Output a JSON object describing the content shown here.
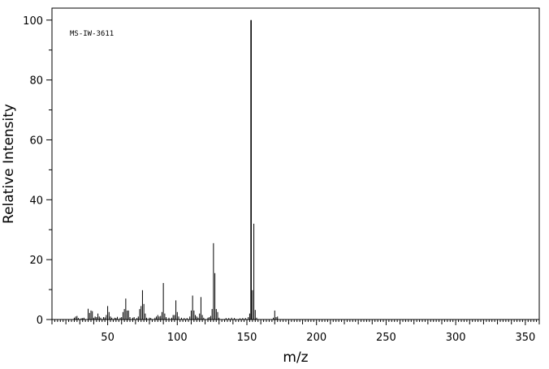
{
  "chart_data": {
    "type": "bar",
    "annotation": "MS-IW-3611",
    "xlabel": "m/z",
    "ylabel": "Relative Intensity",
    "xlim": [
      10,
      360
    ],
    "ylim": [
      0,
      104
    ],
    "x_ticks_major": [
      50,
      100,
      150,
      200,
      250,
      300,
      350
    ],
    "y_ticks_major": [
      0,
      20,
      40,
      60,
      80,
      100
    ],
    "grid": false,
    "legend": "none",
    "color": "#000000",
    "peaks": [
      {
        "mz": 26,
        "i": 0.6
      },
      {
        "mz": 27,
        "i": 1.0
      },
      {
        "mz": 28,
        "i": 1.2
      },
      {
        "mz": 29,
        "i": 0.5
      },
      {
        "mz": 31,
        "i": 0.4
      },
      {
        "mz": 32,
        "i": 0.5
      },
      {
        "mz": 33,
        "i": 0.6
      },
      {
        "mz": 36,
        "i": 3.6
      },
      {
        "mz": 37,
        "i": 2.2
      },
      {
        "mz": 38,
        "i": 3.0
      },
      {
        "mz": 39,
        "i": 2.8
      },
      {
        "mz": 40,
        "i": 0.6
      },
      {
        "mz": 41,
        "i": 1.0
      },
      {
        "mz": 42,
        "i": 0.8
      },
      {
        "mz": 43,
        "i": 2.0
      },
      {
        "mz": 44,
        "i": 1.0
      },
      {
        "mz": 45,
        "i": 0.6
      },
      {
        "mz": 47,
        "i": 0.8
      },
      {
        "mz": 48,
        "i": 0.7
      },
      {
        "mz": 49,
        "i": 1.5
      },
      {
        "mz": 50,
        "i": 4.5
      },
      {
        "mz": 51,
        "i": 2.5
      },
      {
        "mz": 52,
        "i": 1.0
      },
      {
        "mz": 53,
        "i": 0.6
      },
      {
        "mz": 55,
        "i": 0.6
      },
      {
        "mz": 56,
        "i": 0.5
      },
      {
        "mz": 57,
        "i": 0.9
      },
      {
        "mz": 59,
        "i": 0.6
      },
      {
        "mz": 60,
        "i": 0.8
      },
      {
        "mz": 61,
        "i": 2.5
      },
      {
        "mz": 62,
        "i": 3.5
      },
      {
        "mz": 63,
        "i": 7.0
      },
      {
        "mz": 64,
        "i": 3.0
      },
      {
        "mz": 65,
        "i": 3.0
      },
      {
        "mz": 66,
        "i": 0.8
      },
      {
        "mz": 68,
        "i": 0.6
      },
      {
        "mz": 69,
        "i": 0.8
      },
      {
        "mz": 71,
        "i": 0.5
      },
      {
        "mz": 72,
        "i": 1.0
      },
      {
        "mz": 73,
        "i": 3.5
      },
      {
        "mz": 74,
        "i": 4.5
      },
      {
        "mz": 75,
        "i": 9.8
      },
      {
        "mz": 76,
        "i": 5.2
      },
      {
        "mz": 77,
        "i": 2.0
      },
      {
        "mz": 78,
        "i": 0.6
      },
      {
        "mz": 80,
        "i": 0.6
      },
      {
        "mz": 81,
        "i": 0.5
      },
      {
        "mz": 84,
        "i": 0.6
      },
      {
        "mz": 85,
        "i": 1.0
      },
      {
        "mz": 86,
        "i": 1.5
      },
      {
        "mz": 87,
        "i": 1.0
      },
      {
        "mz": 88,
        "i": 1.2
      },
      {
        "mz": 89,
        "i": 2.5
      },
      {
        "mz": 90,
        "i": 12.2
      },
      {
        "mz": 91,
        "i": 2.0
      },
      {
        "mz": 92,
        "i": 0.8
      },
      {
        "mz": 94,
        "i": 0.6
      },
      {
        "mz": 96,
        "i": 0.6
      },
      {
        "mz": 97,
        "i": 1.5
      },
      {
        "mz": 98,
        "i": 1.5
      },
      {
        "mz": 99,
        "i": 6.4
      },
      {
        "mz": 100,
        "i": 2.5
      },
      {
        "mz": 101,
        "i": 1.0
      },
      {
        "mz": 103,
        "i": 0.6
      },
      {
        "mz": 105,
        "i": 0.5
      },
      {
        "mz": 107,
        "i": 0.5
      },
      {
        "mz": 109,
        "i": 1.0
      },
      {
        "mz": 110,
        "i": 3.0
      },
      {
        "mz": 111,
        "i": 8.0
      },
      {
        "mz": 112,
        "i": 3.0
      },
      {
        "mz": 113,
        "i": 1.5
      },
      {
        "mz": 114,
        "i": 1.0
      },
      {
        "mz": 115,
        "i": 0.6
      },
      {
        "mz": 116,
        "i": 2.0
      },
      {
        "mz": 117,
        "i": 7.5
      },
      {
        "mz": 118,
        "i": 1.5
      },
      {
        "mz": 119,
        "i": 0.6
      },
      {
        "mz": 122,
        "i": 0.6
      },
      {
        "mz": 123,
        "i": 0.8
      },
      {
        "mz": 124,
        "i": 1.2
      },
      {
        "mz": 125,
        "i": 3.5
      },
      {
        "mz": 126,
        "i": 25.5
      },
      {
        "mz": 127,
        "i": 15.5
      },
      {
        "mz": 128,
        "i": 3.5
      },
      {
        "mz": 129,
        "i": 2.5
      },
      {
        "mz": 130,
        "i": 0.6
      },
      {
        "mz": 135,
        "i": 0.5
      },
      {
        "mz": 137,
        "i": 0.5
      },
      {
        "mz": 139,
        "i": 0.6
      },
      {
        "mz": 141,
        "i": 0.5
      },
      {
        "mz": 145,
        "i": 0.4
      },
      {
        "mz": 147,
        "i": 0.5
      },
      {
        "mz": 149,
        "i": 0.5
      },
      {
        "mz": 151,
        "i": 0.8
      },
      {
        "mz": 152,
        "i": 2.0
      },
      {
        "mz": 153,
        "i": 100
      },
      {
        "mz": 154,
        "i": 9.8
      },
      {
        "mz": 155,
        "i": 32.0
      },
      {
        "mz": 156,
        "i": 3.2
      },
      {
        "mz": 157,
        "i": 0.6
      },
      {
        "mz": 169,
        "i": 0.6
      },
      {
        "mz": 170,
        "i": 3.0
      },
      {
        "mz": 171,
        "i": 0.8
      },
      {
        "mz": 172,
        "i": 1.0
      }
    ]
  }
}
